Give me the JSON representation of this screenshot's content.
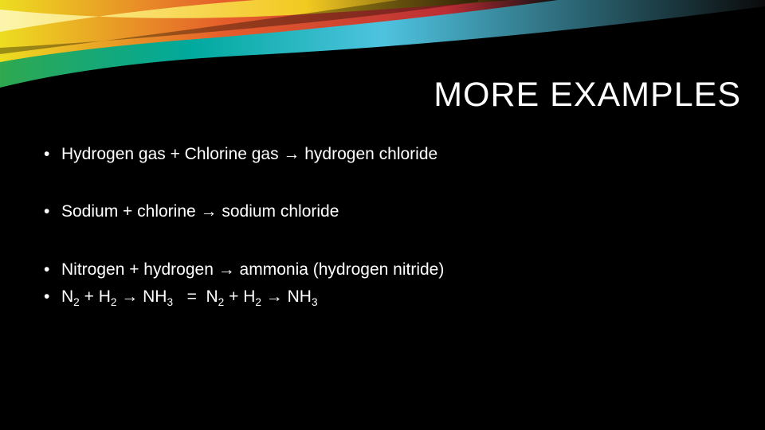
{
  "slide": {
    "title": "MORE EXAMPLES",
    "title_color": "#ffffff",
    "title_fontsize": 43,
    "background_color": "#000000",
    "swoosh_colors": {
      "green": "#2fa84f",
      "teal": "#00a99d",
      "cyan": "#4ec3e0",
      "yellow": "#f7e01e",
      "orange": "#f15a24",
      "red": "#c1272d",
      "highlight": "#fff9c4"
    },
    "bullets": [
      {
        "text": "Hydrogen gas + Chlorine gas → hydrogen chloride",
        "gap_after": true
      },
      {
        "text": "Sodium + chlorine → sodium chloride",
        "gap_after": true
      },
      {
        "text": "Nitrogen + hydrogen → ammonia (hydrogen nitride)",
        "gap_after": false
      },
      {
        "formula_html": "N<sub>2</sub> + H<sub>2</sub> → NH<sub>3</sub>   =  N<sub>2</sub> + H<sub>2</sub> → NH<sub>3</sub>",
        "gap_after": false
      }
    ],
    "bullet_marker": "•",
    "bullet_color": "#ffffff",
    "bullet_fontsize": 21
  }
}
